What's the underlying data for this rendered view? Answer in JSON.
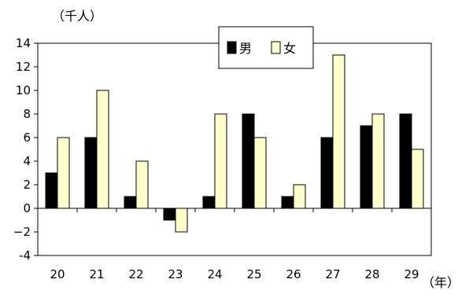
{
  "chart_data": {
    "type": "bar",
    "y_unit_label": "（千人）",
    "x_unit_label": "（年）",
    "categories": [
      "20",
      "21",
      "22",
      "23",
      "24",
      "25",
      "26",
      "27",
      "28",
      "29"
    ],
    "series": [
      {
        "name": "男",
        "color": "#000000",
        "values": [
          3,
          6,
          1,
          -1,
          1,
          8,
          1,
          6,
          7,
          8
        ]
      },
      {
        "name": "女",
        "color": "#FFFFCC",
        "values": [
          6,
          10,
          4,
          -2,
          8,
          6,
          2,
          13,
          8,
          5
        ]
      }
    ],
    "ylim": [
      -4,
      14
    ],
    "yticks": [
      "-4",
      "−2",
      "0",
      "2",
      "4",
      "6",
      "8",
      "10",
      "12",
      "14"
    ],
    "ytick_values": [
      -4,
      -2,
      0,
      2,
      4,
      6,
      8,
      10,
      12,
      14
    ],
    "grid": false,
    "legend_position": "top-center"
  }
}
